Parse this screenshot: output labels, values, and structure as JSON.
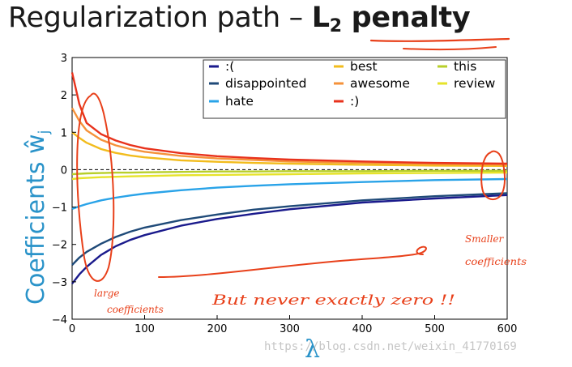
{
  "slide": {
    "title_plain": "Regularization path – ",
    "title_bold_main": "L",
    "title_bold_sub": "2",
    "title_bold_rest": " penalty"
  },
  "chart_data": {
    "type": "line",
    "xlabel": "λ",
    "ylabel": "Coefficients ŵ",
    "ylabel_sub": "j",
    "xlim": [
      0,
      600
    ],
    "ylim": [
      -4,
      3
    ],
    "xticks": [
      "0",
      "100",
      "200",
      "300",
      "400",
      "500",
      "600"
    ],
    "yticks": [
      "−4",
      "−3",
      "−2",
      "−1",
      "0",
      "1",
      "2",
      "3"
    ],
    "xtick_values": [
      0,
      100,
      200,
      300,
      400,
      500,
      600
    ],
    "ytick_values": [
      -4,
      -3,
      -2,
      -1,
      0,
      1,
      2,
      3
    ],
    "legend_placement": "top-right",
    "grid": false,
    "zero_line": "dashed",
    "series": [
      {
        "name": ":(",
        "color": "#1a1a8c",
        "x": [
          0,
          10,
          20,
          40,
          60,
          80,
          100,
          150,
          200,
          250,
          300,
          400,
          500,
          600
        ],
        "y": [
          -3.05,
          -2.8,
          -2.6,
          -2.28,
          -2.05,
          -1.88,
          -1.75,
          -1.5,
          -1.32,
          -1.18,
          -1.06,
          -0.88,
          -0.77,
          -0.68
        ]
      },
      {
        "name": "disappointed",
        "color": "#1f4a78",
        "x": [
          0,
          10,
          20,
          40,
          60,
          80,
          100,
          150,
          200,
          250,
          300,
          400,
          500,
          600
        ],
        "y": [
          -2.55,
          -2.35,
          -2.2,
          -1.98,
          -1.8,
          -1.66,
          -1.55,
          -1.35,
          -1.2,
          -1.07,
          -0.98,
          -0.82,
          -0.71,
          -0.63
        ]
      },
      {
        "name": "hate",
        "color": "#29a3e8",
        "x": [
          0,
          10,
          20,
          40,
          60,
          80,
          100,
          150,
          200,
          250,
          300,
          400,
          500,
          600
        ],
        "y": [
          -1.05,
          -0.98,
          -0.92,
          -0.82,
          -0.75,
          -0.69,
          -0.64,
          -0.55,
          -0.48,
          -0.43,
          -0.39,
          -0.33,
          -0.28,
          -0.25
        ]
      },
      {
        "name": "best",
        "color": "#f2bc1d",
        "x": [
          0,
          10,
          20,
          40,
          60,
          80,
          100,
          150,
          200,
          250,
          300,
          400,
          500,
          600
        ],
        "y": [
          1.0,
          0.85,
          0.72,
          0.55,
          0.45,
          0.38,
          0.33,
          0.25,
          0.21,
          0.18,
          0.16,
          0.13,
          0.11,
          0.1
        ]
      },
      {
        "name": "awesome",
        "color": "#f5923a",
        "x": [
          0,
          10,
          20,
          40,
          60,
          80,
          100,
          150,
          200,
          250,
          300,
          400,
          500,
          600
        ],
        "y": [
          1.65,
          1.3,
          1.05,
          0.8,
          0.65,
          0.55,
          0.48,
          0.37,
          0.3,
          0.26,
          0.22,
          0.18,
          0.15,
          0.13
        ]
      },
      {
        "name": ":)",
        "color": "#e8321c",
        "x": [
          0,
          10,
          20,
          40,
          60,
          80,
          100,
          150,
          200,
          250,
          300,
          400,
          500,
          600
        ],
        "y": [
          2.6,
          1.75,
          1.25,
          0.95,
          0.78,
          0.66,
          0.57,
          0.44,
          0.36,
          0.31,
          0.27,
          0.22,
          0.18,
          0.16
        ]
      },
      {
        "name": "this",
        "color": "#b8cf2a",
        "x": [
          0,
          10,
          20,
          40,
          60,
          80,
          100,
          150,
          200,
          250,
          300,
          400,
          500,
          600
        ],
        "y": [
          -0.12,
          -0.11,
          -0.1,
          -0.09,
          -0.08,
          -0.08,
          -0.07,
          -0.06,
          -0.05,
          -0.05,
          -0.04,
          -0.04,
          -0.03,
          -0.03
        ]
      },
      {
        "name": "review",
        "color": "#e6e32a",
        "x": [
          0,
          10,
          20,
          40,
          60,
          80,
          100,
          150,
          200,
          250,
          300,
          400,
          500,
          600
        ],
        "y": [
          -0.25,
          -0.23,
          -0.22,
          -0.2,
          -0.19,
          -0.18,
          -0.17,
          -0.15,
          -0.14,
          -0.13,
          -0.12,
          -0.1,
          -0.09,
          -0.08
        ]
      }
    ],
    "legend_columns": [
      [
        0,
        1,
        2
      ],
      [
        3,
        4,
        5
      ],
      [
        6,
        7
      ]
    ]
  },
  "annotations": {
    "large": "large",
    "coefficients_left": "coefficients",
    "but_never": "But never exactly zero !!",
    "smaller": "Smaller",
    "coefficients_right": "coefficients"
  },
  "watermark": "https://blog.csdn.net/weixin_41770169"
}
